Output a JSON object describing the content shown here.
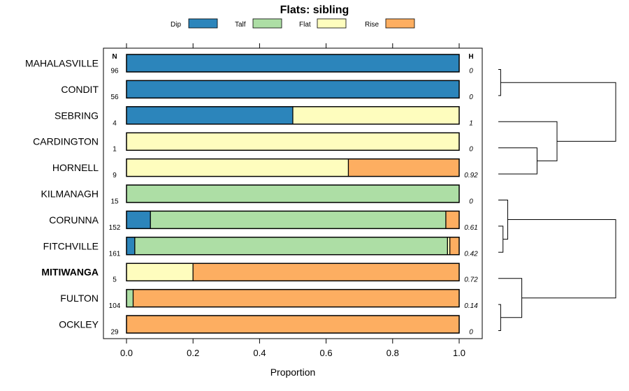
{
  "chart_data": {
    "type": "bar",
    "orientation": "horizontal-stacked",
    "title": "Flats: sibling",
    "xlabel": "Proportion",
    "ylabel": "",
    "xlim": [
      0,
      1
    ],
    "xticks": [
      "0.0",
      "0.2",
      "0.4",
      "0.6",
      "0.8",
      "1.0"
    ],
    "xtick_values": [
      0,
      0.2,
      0.4,
      0.6,
      0.8,
      1.0
    ],
    "n_header": "N",
    "h_header": "H",
    "legend_placement": "top",
    "legend": [
      {
        "name": "Dip",
        "color": "#2c85bb"
      },
      {
        "name": "Talf",
        "color": "#addea5"
      },
      {
        "name": "Flat",
        "color": "#fefdbe"
      },
      {
        "name": "Rise",
        "color": "#fdae61"
      }
    ],
    "categories": [
      "MAHALASVILLE",
      "CONDIT",
      "SEBRING",
      "CARDINGTON",
      "HORNELL",
      "KILMANAGH",
      "CORUNNA",
      "FITCHVILLE",
      "MITIWANGA",
      "FULTON",
      "OCKLEY"
    ],
    "bold_category": "MITIWANGA",
    "n": [
      "96",
      "56",
      "4",
      "1",
      "9",
      "15",
      "152",
      "161",
      "5",
      "104",
      "29"
    ],
    "h": [
      "0",
      "0",
      "1",
      "0",
      "0.92",
      "0",
      "0.61",
      "0.42",
      "0.72",
      "0.14",
      "0"
    ],
    "series": [
      {
        "name": "Dip",
        "values": [
          1.0,
          1.0,
          0.5,
          0.0,
          0.0,
          0.0,
          0.072,
          0.025,
          0.0,
          0.0,
          0.0
        ]
      },
      {
        "name": "Talf",
        "values": [
          0.0,
          0.0,
          0.0,
          0.0,
          0.0,
          1.0,
          0.888,
          0.94,
          0.0,
          0.02,
          0.0
        ]
      },
      {
        "name": "Flat",
        "values": [
          0.0,
          0.0,
          0.5,
          1.0,
          0.667,
          0.0,
          0.0,
          0.007,
          0.2,
          0.0,
          0.0
        ]
      },
      {
        "name": "Rise",
        "values": [
          0.0,
          0.0,
          0.0,
          0.0,
          0.333,
          0.0,
          0.04,
          0.028,
          0.8,
          0.98,
          1.0
        ]
      }
    ],
    "dendrogram": {
      "leaf_order": [
        "MAHALASVILLE",
        "CONDIT",
        "SEBRING",
        "CARDINGTON",
        "HORNELL",
        "KILMANAGH",
        "CORUNNA",
        "FITCHVILLE",
        "MITIWANGA",
        "FULTON",
        "OCKLEY"
      ],
      "merges": [
        {
          "left": "MAHALASVILLE",
          "right": "CONDIT",
          "height": 0.02
        },
        {
          "left": "FULTON",
          "right": "OCKLEY",
          "height": 0.02
        },
        {
          "left": "CORUNNA",
          "right": "FITCHVILLE",
          "height": 0.04
        },
        {
          "left": "CARDINGTON",
          "right": "HORNELL",
          "height": 0.33
        },
        {
          "left": "KILMANAGH",
          "right": "CORUNNA+FITCHVILLE",
          "height": 0.08
        },
        {
          "left": "MITIWANGA",
          "right": "FULTON+OCKLEY",
          "height": 0.2
        },
        {
          "left": "SEBRING",
          "right": "CARDINGTON+HORNELL",
          "height": 0.5
        },
        {
          "left": "MAHALASVILLE+CONDIT",
          "right": "SEBRING+CARDINGTON+HORNELL",
          "height": 1.0
        },
        {
          "left": "KILMANAGH+CORUNNA+FITCHVILLE",
          "right": "MITIWANGA+FULTON+OCKLEY",
          "height": 1.0
        },
        {
          "left": "upper",
          "right": "lower",
          "height": 1.05
        }
      ]
    }
  }
}
